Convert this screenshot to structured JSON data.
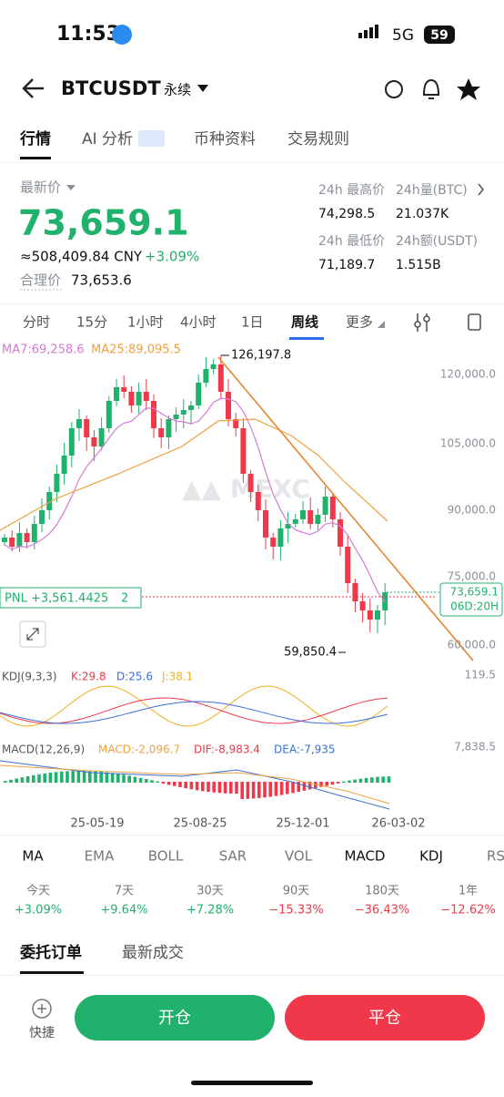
{
  "status_bar": {
    "time": "11:53",
    "network": "5G",
    "battery": "59"
  },
  "header": {
    "symbol": "BTCUSDT",
    "contract": "永续"
  },
  "tabs": [
    "行情",
    "AI 分析",
    "币种资料",
    "交易规则"
  ],
  "price": {
    "label": "最新价",
    "last": "73,659.1",
    "cny": "≈508,409.84 CNY",
    "change": "+3.09%",
    "fair_label": "合理价",
    "fair": "73,653.6"
  },
  "stats": [
    {
      "label": "24h 最高价",
      "value": "74,298.5"
    },
    {
      "label": "24h量(BTC)",
      "value": "21.037K"
    },
    {
      "label": "24h 最低价",
      "value": "71,189.7"
    },
    {
      "label": "24h额(USDT)",
      "value": "1.515B"
    }
  ],
  "intervals": [
    "分时",
    "15分",
    "1小时",
    "4小时",
    "1日",
    "周线",
    "更多"
  ],
  "chart": {
    "ma7": "MA7:69,258.6",
    "ma25": "MA25:89,095.5",
    "high": "126,197.8",
    "low": "59,850.4",
    "price_axis": [
      "120,000.0",
      "105,000.0",
      "90,000.0",
      "75,000.0",
      "60,000.0"
    ],
    "last_price": "73,659.1",
    "countdown": "06D:20H",
    "pnl": "PNL +3,561.4425",
    "pnl_count": "2",
    "kdj": {
      "title": "KDJ(9,3,3)",
      "k": "K:29.8",
      "d": "D:25.6",
      "j": "J:38.1",
      "axis": "119.5"
    },
    "macd": {
      "title": "MACD(12,26,9)",
      "macd": "MACD:-2,096.7",
      "dif": "DIF:-8,983.4",
      "dea": "DEA:-7,935",
      "axis": "7,838.5"
    },
    "dates": [
      "25-05-19",
      "25-08-25",
      "25-12-01",
      "26-03-02"
    ]
  },
  "indicators": [
    "MA",
    "EMA",
    "BOLL",
    "SAR",
    "VOL",
    "MACD",
    "KDJ",
    "RS"
  ],
  "periods": [
    {
      "label": "今天",
      "change": "+3.09%"
    },
    {
      "label": "7天",
      "change": "+9.64%"
    },
    {
      "label": "30天",
      "change": "+7.28%"
    },
    {
      "label": "90天",
      "change": "−15.33%"
    },
    {
      "label": "180天",
      "change": "−36.43%"
    },
    {
      "label": "1年",
      "change": "−12.62%"
    }
  ],
  "order_tabs": [
    "委托订单",
    "最新成交"
  ],
  "actions": {
    "quick": "快捷",
    "open": "开仓",
    "close": "平仓"
  }
}
